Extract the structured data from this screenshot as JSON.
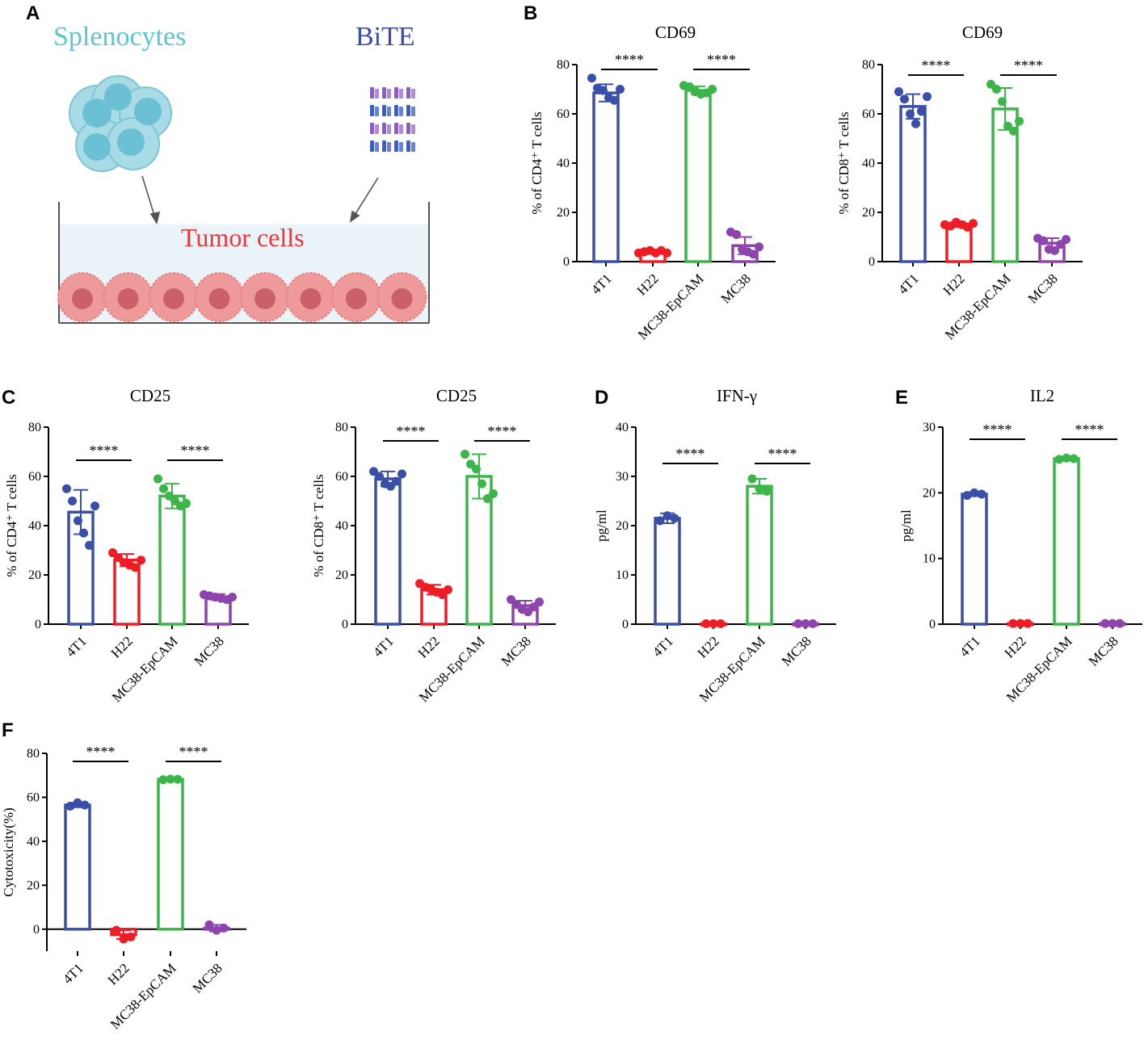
{
  "panel_letters": [
    "A",
    "B",
    "C",
    "D",
    "E",
    "F"
  ],
  "schematic": {
    "splenocytes_label": "Splenocytes",
    "bite_label": "BiTE",
    "tumor_label": "Tumor cells"
  },
  "colors": {
    "blue": "#3a4fa8",
    "red": "#ee1c25",
    "green": "#3cb54a",
    "purple": "#8e44ad",
    "cyan_text": "#5bc5d0",
    "bite_text": "#3b4da3",
    "tumor_text": "#e8363a"
  },
  "chart_data": [
    {
      "id": "B1",
      "type": "bar",
      "title": "CD69",
      "ylabel": "% of CD4⁺ T cells",
      "categories": [
        "4T1",
        "H22",
        "MC38-EpCAM",
        "MC38"
      ],
      "values": [
        68.5,
        3.8,
        69.5,
        6.5
      ],
      "errors": [
        3.5,
        0.6,
        1.6,
        3.5
      ],
      "points": [
        [
          74.5,
          70.5,
          69.5,
          66.5,
          65.5,
          70
        ],
        [
          3.5,
          4,
          4.5,
          3.5,
          4.5,
          3.5
        ],
        [
          71.5,
          71,
          69,
          68,
          68.5,
          70
        ],
        [
          12,
          11,
          5,
          4,
          3,
          6
        ]
      ],
      "ylim": [
        0,
        80
      ],
      "yticks": [
        0,
        20,
        40,
        60,
        80
      ],
      "significance": [
        {
          "from": 0,
          "to": 1,
          "label": "****"
        },
        {
          "from": 2,
          "to": 3,
          "label": "****"
        }
      ]
    },
    {
      "id": "B2",
      "type": "bar",
      "title": "CD69",
      "ylabel": "% of CD8⁺ T cells",
      "categories": [
        "4T1",
        "H22",
        "MC38-EpCAM",
        "MC38"
      ],
      "values": [
        63,
        15,
        62,
        7.5
      ],
      "errors": [
        5,
        1,
        8.5,
        2
      ],
      "points": [
        [
          69,
          66,
          60,
          56,
          61,
          67
        ],
        [
          15,
          14.5,
          16,
          15,
          14,
          15.5
        ],
        [
          72,
          70,
          65,
          55,
          53,
          57
        ],
        [
          9.5,
          8.5,
          5,
          4.5,
          7,
          9
        ]
      ],
      "ylim": [
        0,
        80
      ],
      "yticks": [
        0,
        20,
        40,
        60,
        80
      ],
      "significance": [
        {
          "from": 0,
          "to": 1,
          "label": "****"
        },
        {
          "from": 2,
          "to": 3,
          "label": "****"
        }
      ]
    },
    {
      "id": "C1",
      "type": "bar",
      "title": "CD25",
      "ylabel": "% of CD4⁺ T cells",
      "categories": [
        "4T1",
        "H22",
        "MC38-EpCAM",
        "MC38"
      ],
      "values": [
        45.5,
        26,
        52,
        11
      ],
      "errors": [
        9,
        2.5,
        5,
        1.2
      ],
      "points": [
        [
          55,
          50,
          42,
          37,
          32,
          48
        ],
        [
          29,
          27,
          25,
          24,
          23,
          26
        ],
        [
          59,
          55,
          52,
          50,
          48,
          49
        ],
        [
          12,
          11.5,
          11,
          10.5,
          10,
          11
        ]
      ],
      "ylim": [
        0,
        80
      ],
      "yticks": [
        0,
        20,
        40,
        60,
        80
      ],
      "significance": [
        {
          "from": 0,
          "to": 1,
          "label": "****"
        },
        {
          "from": 2,
          "to": 3,
          "label": "****"
        }
      ]
    },
    {
      "id": "C2",
      "type": "bar",
      "title": "CD25",
      "ylabel": "% of CD8⁺ T cells",
      "categories": [
        "4T1",
        "H22",
        "MC38-EpCAM",
        "MC38"
      ],
      "values": [
        59,
        14,
        60,
        7.5
      ],
      "errors": [
        3,
        2,
        9,
        2
      ],
      "points": [
        [
          62,
          60,
          57,
          56,
          58,
          61
        ],
        [
          16.5,
          15,
          14,
          13,
          12,
          14
        ],
        [
          69,
          65,
          63,
          57,
          51,
          53
        ],
        [
          10,
          8,
          6,
          5,
          7,
          9
        ]
      ],
      "ylim": [
        0,
        80
      ],
      "yticks": [
        0,
        20,
        40,
        60,
        80
      ],
      "significance": [
        {
          "from": 0,
          "to": 1,
          "label": "****"
        },
        {
          "from": 2,
          "to": 3,
          "label": "****"
        }
      ]
    },
    {
      "id": "D",
      "type": "bar",
      "title": "IFN-γ",
      "ylabel": "pg/ml",
      "categories": [
        "4T1",
        "H22",
        "MC38-EpCAM",
        "MC38"
      ],
      "values": [
        21.5,
        0.1,
        28,
        0.1
      ],
      "errors": [
        1,
        0,
        1.5,
        0
      ],
      "points": [
        [
          21,
          22,
          21.5
        ],
        [
          0.1,
          0.1,
          0.1
        ],
        [
          29.5,
          27.5,
          27
        ],
        [
          0.1,
          0.1,
          0.1
        ]
      ],
      "ylim": [
        0,
        40
      ],
      "yticks": [
        0,
        10,
        20,
        30,
        40
      ],
      "significance": [
        {
          "from": 0,
          "to": 1,
          "label": "****"
        },
        {
          "from": 2,
          "to": 3,
          "label": "****"
        }
      ]
    },
    {
      "id": "E",
      "type": "bar",
      "title": "IL2",
      "ylabel": "pg/ml",
      "categories": [
        "4T1",
        "H22",
        "MC38-EpCAM",
        "MC38"
      ],
      "values": [
        19.8,
        0.1,
        25.2,
        0.1
      ],
      "errors": [
        0.3,
        0,
        0.2,
        0
      ],
      "points": [
        [
          19.6,
          20,
          19.8
        ],
        [
          0.1,
          0.1,
          0.1
        ],
        [
          25.1,
          25.3,
          25.2
        ],
        [
          0.1,
          0.1,
          0.1
        ]
      ],
      "ylim": [
        0,
        30
      ],
      "yticks": [
        0,
        10,
        20,
        30
      ],
      "significance": [
        {
          "from": 0,
          "to": 1,
          "label": "****"
        },
        {
          "from": 2,
          "to": 3,
          "label": "****"
        }
      ]
    },
    {
      "id": "F",
      "type": "bar",
      "title": "",
      "ylabel": "Cytotoxicity(%)",
      "categories": [
        "4T1",
        "H22",
        "MC38-EpCAM",
        "MC38"
      ],
      "values": [
        56.5,
        -2.5,
        68.2,
        0.5
      ],
      "errors": [
        1,
        2,
        0.3,
        1.5
      ],
      "points": [
        [
          56,
          57.5,
          56.5
        ],
        [
          -0.5,
          -4.5,
          -3.5
        ],
        [
          68,
          68.3,
          68.2
        ],
        [
          2,
          -0.5,
          0.5
        ]
      ],
      "ylim": [
        -10,
        80
      ],
      "yticks": [
        0,
        20,
        40,
        60,
        80
      ],
      "significance": [
        {
          "from": 0,
          "to": 1,
          "label": "****"
        },
        {
          "from": 2,
          "to": 3,
          "label": "****"
        }
      ]
    }
  ]
}
